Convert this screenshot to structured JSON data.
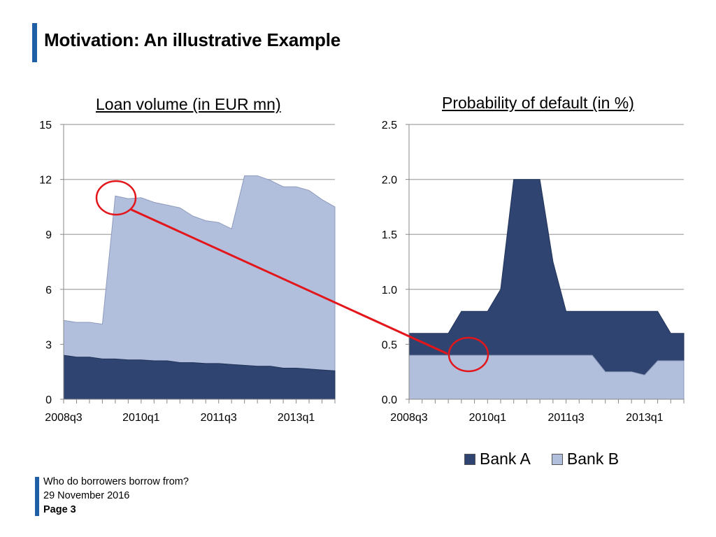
{
  "slide": {
    "title": "Motivation: An illustrative Example",
    "footer": {
      "line1": "Who do borrowers borrow from?",
      "line2": "29 November 2016",
      "page": "Page 3"
    }
  },
  "colors": {
    "bank_a": "#2f4470",
    "bank_b": "#b1bedc",
    "grid": "#b3b3b3",
    "highlight": "#e3171b",
    "accent": "#1f5fa6"
  },
  "legend": [
    "Bank A",
    "Bank B"
  ],
  "chart_data": [
    {
      "type": "area",
      "stacked": true,
      "title": "Loan volume (in EUR mn)",
      "x": [
        "2008q3",
        "2008q4",
        "2009q1",
        "2009q2",
        "2009q3",
        "2009q4",
        "2010q1",
        "2010q2",
        "2010q3",
        "2010q4",
        "2011q1",
        "2011q2",
        "2011q3",
        "2011q4",
        "2012q1",
        "2012q2",
        "2012q3",
        "2012q4",
        "2013q1",
        "2013q2",
        "2013q3",
        "2013q4"
      ],
      "x_tick_labels": [
        "2008q3",
        "2010q1",
        "2011q3",
        "2013q1"
      ],
      "y_tick_labels": [
        "0",
        "3",
        "6",
        "9",
        "12",
        "15"
      ],
      "ylim": [
        0,
        15
      ],
      "grid": true,
      "series": [
        {
          "name": "Bank A",
          "values": [
            2.4,
            2.3,
            2.3,
            2.2,
            2.2,
            2.15,
            2.15,
            2.1,
            2.1,
            2.0,
            2.0,
            1.95,
            1.95,
            1.9,
            1.85,
            1.8,
            1.8,
            1.7,
            1.7,
            1.65,
            1.6,
            1.55
          ]
        },
        {
          "name": "Bank B",
          "values": [
            1.9,
            1.9,
            1.9,
            1.9,
            8.9,
            8.8,
            8.85,
            8.65,
            8.5,
            8.45,
            8.0,
            7.8,
            7.7,
            7.4,
            10.35,
            10.4,
            10.15,
            9.9,
            9.9,
            9.75,
            9.3,
            8.95
          ]
        }
      ]
    },
    {
      "type": "area",
      "stacked": true,
      "title": "Probability of default (in %)",
      "x": [
        "2008q3",
        "2008q4",
        "2009q1",
        "2009q2",
        "2009q3",
        "2009q4",
        "2010q1",
        "2010q2",
        "2010q3",
        "2010q4",
        "2011q1",
        "2011q2",
        "2011q3",
        "2011q4",
        "2012q1",
        "2012q2",
        "2012q3",
        "2012q4",
        "2013q1",
        "2013q2",
        "2013q3",
        "2013q4"
      ],
      "x_tick_labels": [
        "2008q3",
        "2010q1",
        "2011q3",
        "2013q1"
      ],
      "y_tick_labels": [
        "0.0",
        "0.5",
        "1.0",
        "1.5",
        "2.0",
        "2.5"
      ],
      "ylim": [
        0,
        2.5
      ],
      "grid": true,
      "series": [
        {
          "name": "Bank A",
          "values": [
            0.2,
            0.2,
            0.2,
            0.2,
            0.4,
            0.4,
            0.4,
            0.6,
            1.6,
            1.6,
            1.6,
            0.85,
            0.4,
            0.4,
            0.4,
            0.55,
            0.55,
            0.55,
            0.58,
            0.45,
            0.25,
            0.25
          ]
        },
        {
          "name": "Bank B",
          "values": [
            0.4,
            0.4,
            0.4,
            0.4,
            0.4,
            0.4,
            0.4,
            0.4,
            0.4,
            0.4,
            0.4,
            0.4,
            0.4,
            0.4,
            0.4,
            0.25,
            0.25,
            0.25,
            0.22,
            0.35,
            0.35,
            0.35
          ]
        }
      ]
    }
  ]
}
